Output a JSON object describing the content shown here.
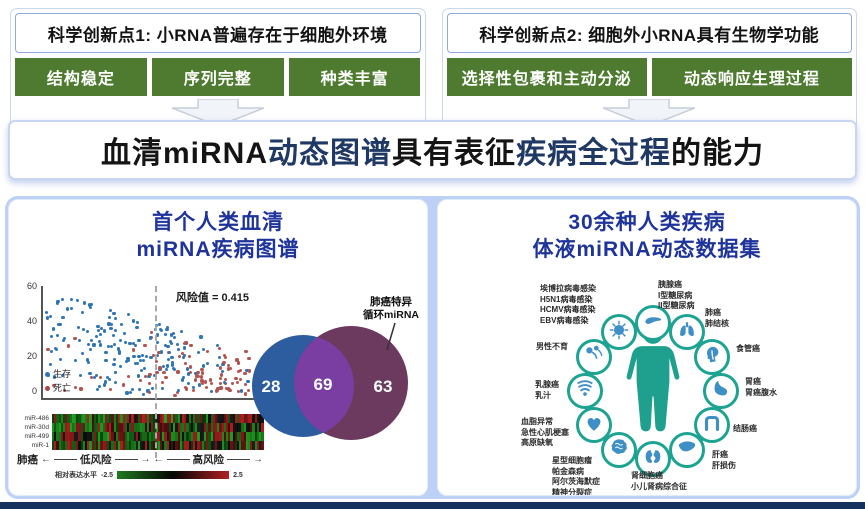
{
  "top": {
    "box1": {
      "title": "科学创新点1: 小RNA普遍存在于细胞外环境",
      "tags": [
        "结构稳定",
        "序列完整",
        "种类丰富"
      ]
    },
    "box2": {
      "title": "科学创新点2: 细胞外小RNA具有生物学功能",
      "tags": [
        "选择性包裹和主动分泌",
        "动态响应生理过程"
      ]
    }
  },
  "banner": {
    "segments": [
      {
        "text": "血清miRNA ",
        "color": "#141414"
      },
      {
        "text": "动态图谱",
        "color": "#1f3864"
      },
      {
        "text": "具有表征",
        "color": "#141414"
      },
      {
        "text": "疾病全过程",
        "color": "#1f3864"
      },
      {
        "text": "的能力",
        "color": "#141414"
      }
    ]
  },
  "left_panel": {
    "title_line1": "首个人类血清",
    "title_line2": "miRNA疾病图谱",
    "scatter": {
      "risk_label": "风险值 = 0.415",
      "y_ticks": [
        "60",
        "40",
        "20",
        "0"
      ],
      "legend": [
        {
          "label": "生存",
          "color": "#2e75b6"
        },
        {
          "label": "死亡",
          "color": "#a94442"
        }
      ]
    },
    "heatmap": {
      "rows": [
        "miR-486",
        "miR-30d",
        "miR-499",
        "miR-1"
      ],
      "cancer_label": "肺癌",
      "low_risk_label": "低风险",
      "high_risk_label": "高风险",
      "colorbar_label": "相对表达水平",
      "colorbar_min": "-2.5",
      "colorbar_max": "2.5"
    },
    "venn": {
      "left_value": "28",
      "overlap_value": "69",
      "right_value": "63",
      "callout_line1": "肺癌特异",
      "callout_line2": "循环miRNA",
      "left_color": "#2d5d9f",
      "overlap_color": "#7a3da2",
      "right_color": "#6b3a5e"
    }
  },
  "right_panel": {
    "title_line1": "30余种人类疾病",
    "title_line2": "体液miRNA动态数据集",
    "accent_color": "#1ca392",
    "ring": [
      {
        "icon": "pancreas-icon",
        "labels": [
          "胰腺癌",
          "I型糖尿病",
          "II型糖尿病"
        ]
      },
      {
        "icon": "lung-icon",
        "labels": [
          "肺癌",
          "肺结核"
        ]
      },
      {
        "icon": "esophagus-icon",
        "labels": [
          "食管癌"
        ]
      },
      {
        "icon": "stomach-icon",
        "labels": [
          "胃癌",
          "胃癌腹水"
        ]
      },
      {
        "icon": "colon-icon",
        "labels": [
          "结肠癌"
        ]
      },
      {
        "icon": "liver-icon",
        "labels": [
          "肝癌",
          "肝损伤"
        ]
      },
      {
        "icon": "kidney-icon",
        "labels": [
          "肾细胞癌",
          "小儿肾病综合征"
        ]
      },
      {
        "icon": "brain-icon",
        "labels": [
          "星型细胞瘤",
          "帕金森病",
          "阿尔茨海默症",
          "精神分裂症"
        ]
      },
      {
        "icon": "heart-icon",
        "labels": [
          "血脂异常",
          "急性心肌梗塞",
          "高原缺氧"
        ]
      },
      {
        "icon": "breast-icon",
        "labels": [
          "乳腺癌",
          "乳汁"
        ]
      },
      {
        "icon": "sperm-icon",
        "labels": [
          "男性不育"
        ]
      },
      {
        "icon": "virus-icon",
        "labels": [
          "埃博拉病毒感染",
          "H5N1病毒感染",
          "HCMV病毒感染",
          "EBV病毒感染"
        ]
      }
    ]
  }
}
